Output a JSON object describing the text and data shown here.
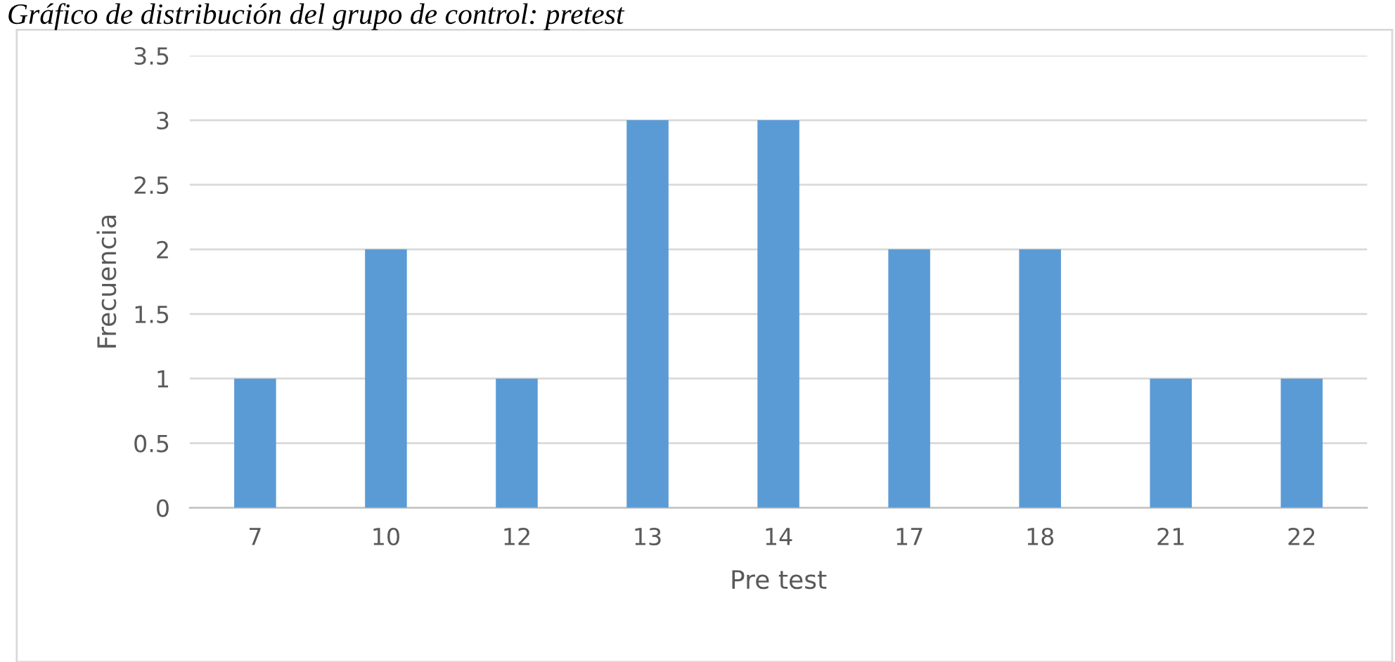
{
  "chart_data": {
    "type": "bar",
    "title": "Gráfico de distribución del grupo de control: pretest",
    "xlabel": "Pre test",
    "ylabel": "Frecuencia",
    "categories": [
      "7",
      "10",
      "12",
      "13",
      "14",
      "17",
      "18",
      "21",
      "22"
    ],
    "values": [
      1,
      2,
      1,
      3,
      3,
      2,
      2,
      1,
      1
    ],
    "color": "#5b9bd5",
    "ylim": [
      0,
      3.5
    ],
    "yticks": [
      0,
      0.5,
      1,
      1.5,
      2,
      2.5,
      3,
      3.5
    ],
    "grid": "y"
  }
}
